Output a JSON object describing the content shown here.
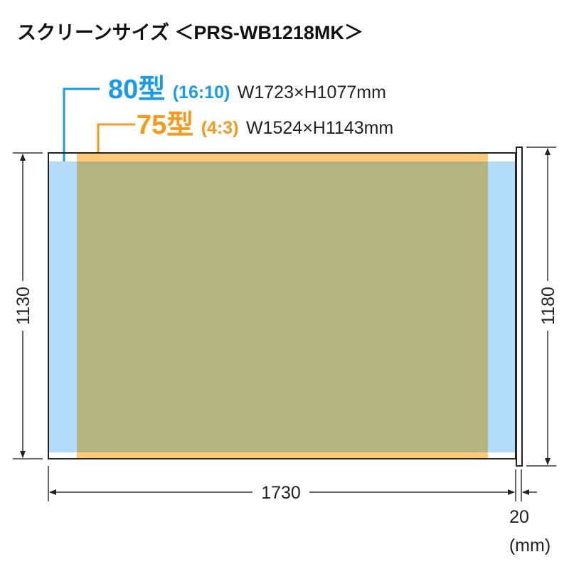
{
  "title": "スクリーンサイズ ＜PRS-WB1218MK＞",
  "sizes": [
    {
      "label": "80型",
      "ratio": "(16:10)",
      "dims": "W1723×H1077mm",
      "color": "#1a9be8",
      "fill": "#b3dcf8"
    },
    {
      "label": "75型",
      "ratio": "(4:3)",
      "dims": "W1524×H1143mm",
      "color": "#f59a1c",
      "fill": "#ffc97a"
    }
  ],
  "overlap_fill": "#b3b47f",
  "dimensions": {
    "left_height": "1130",
    "right_height": "1180",
    "width": "1730",
    "depth": "20",
    "unit": "(mm)"
  }
}
